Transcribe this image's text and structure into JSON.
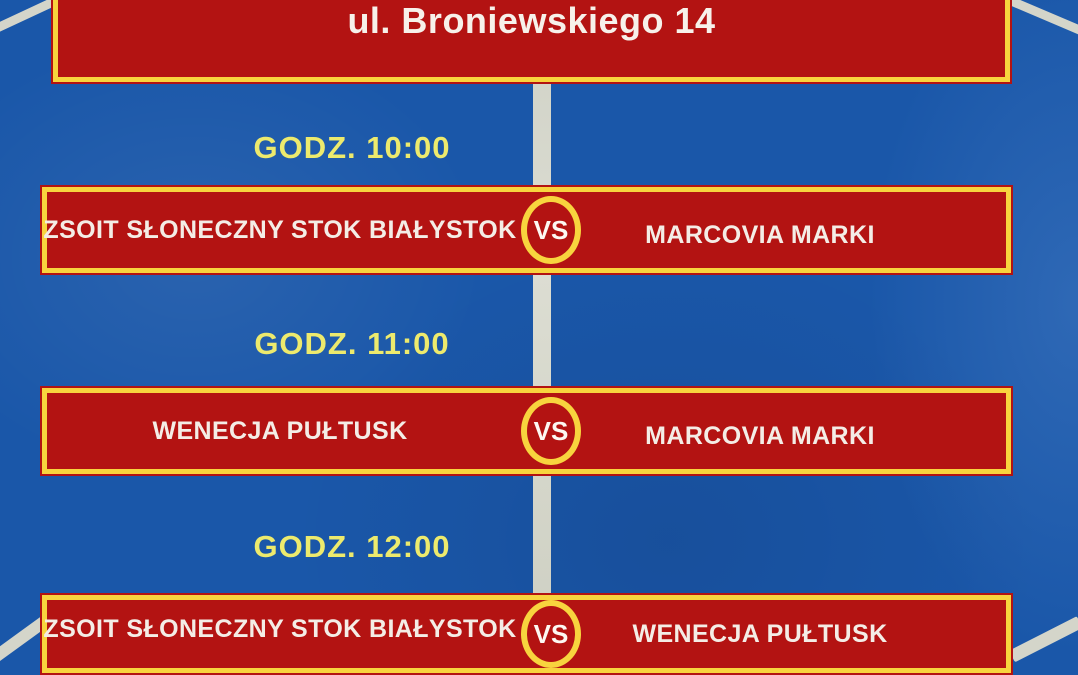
{
  "poster": {
    "venue_address": "ul. Broniewskiego 14",
    "vs_label": "VS",
    "matches": [
      {
        "time_label": "GODZ. 10:00",
        "home": "ZSOIT SŁONECZNY STOK BIAŁYSTOK",
        "away": "MARCOVIA MARKI"
      },
      {
        "time_label": "GODZ. 11:00",
        "home": "WENECJA PUŁTUSK",
        "away": "MARCOVIA MARKI"
      },
      {
        "time_label": "GODZ. 12:00",
        "home": "ZSOIT SŁONECZNY STOK BIAŁYSTOK",
        "away": "WENECJA PUŁTUSK"
      }
    ],
    "colors": {
      "panel_red": "#b31312",
      "border_yellow": "#f8d43e",
      "court_blue": "#1a57a9",
      "court_line": "#d4d5ca",
      "time_text_yellow": "#edea6d",
      "team_text_white": "#f4ede6"
    }
  }
}
